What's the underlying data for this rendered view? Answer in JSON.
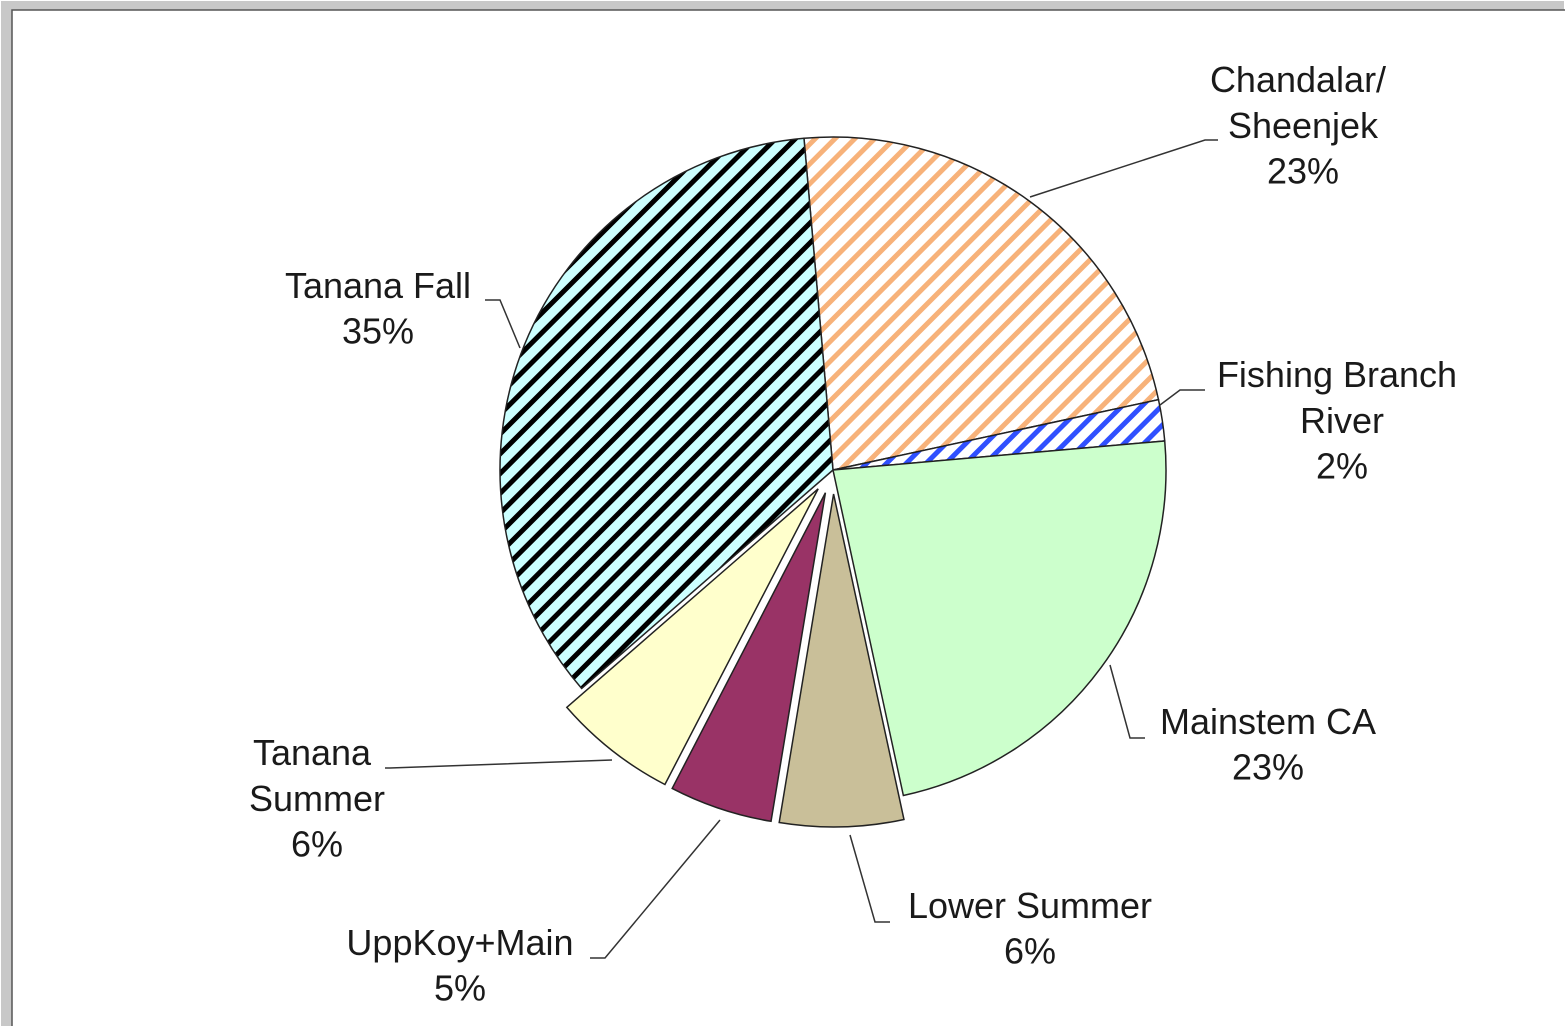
{
  "chart_data": {
    "type": "pie",
    "categories": [
      "Chandalar/Sheenjek",
      "Fishing Branch River",
      "Mainstem CA",
      "Lower Summer",
      "UppKoy+Main",
      "Tanana Summer",
      "Tanana Fall"
    ],
    "values": [
      23,
      2,
      23,
      6,
      5,
      6,
      35
    ],
    "value_labels": [
      "23%",
      "2%",
      "23%",
      "6%",
      "5%",
      "6%",
      "35%"
    ],
    "colors": [
      "#ffffff",
      "#ffffff",
      "#ccffcc",
      "#c9bf99",
      "#993366",
      "#ffffcc",
      "#ccffff"
    ],
    "hatch_colors": [
      "#f7b27a",
      "#3050ff",
      null,
      null,
      null,
      null,
      "#000000"
    ]
  }
}
